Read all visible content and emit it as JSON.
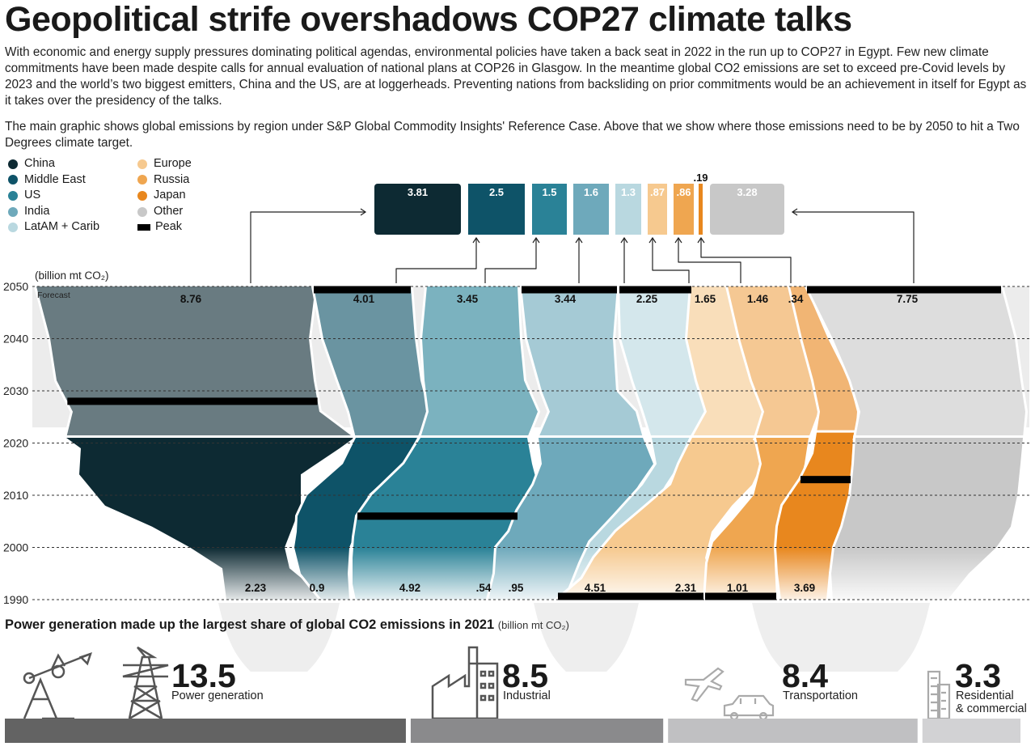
{
  "header": {
    "title": "Geopolitical strife overshadows COP27 climate talks",
    "intro1": "With economic and energy supply pressures dominating political agendas, environmental policies have taken a back seat in 2022 in the run up to COP27 in Egypt. Few new climate commitments have been made despite calls for annual evaluation of national plans at COP26 in Glasgow. In the meantime global CO2 emissions are set to exceed pre-Covid levels by 2023 and the world’s two biggest emitters, China and the US, are at loggerheads. Preventing nations from backsliding on prior commitments would be an achievement in itself for Egypt as it takes over the presidency of the talks.",
    "intro2": "The main graphic shows global emissions by region under S&P Global Commodity Insights' Reference Case. Above that we show where those emissions need to be by 2050 to hit a Two Degrees climate target."
  },
  "legend": {
    "items": [
      {
        "label": "China",
        "color": "#0d2a33"
      },
      {
        "label": "Middle East",
        "color": "#0e5368"
      },
      {
        "label": "US",
        "color": "#2a8297"
      },
      {
        "label": "India",
        "color": "#6ea9bb"
      },
      {
        "label": "LatAM + Carib",
        "color": "#b9d8e0"
      },
      {
        "label": "Europe",
        "color": "#f6c98f"
      },
      {
        "label": "Russia",
        "color": "#efa650"
      },
      {
        "label": "Japan",
        "color": "#e8871e"
      },
      {
        "label": "Other",
        "color": "#c8c8c8"
      }
    ],
    "peak_label": "Peak"
  },
  "chart_data": [
    {
      "type": "area",
      "unit": "(billion mt CO₂)",
      "forecast_label": "Forecast",
      "y_ticks": [
        "2050",
        "2040",
        "2030",
        "2020",
        "2010",
        "2000",
        "1990"
      ],
      "series": [
        {
          "name": "China",
          "value_1990": "2.23",
          "value_2050": "8.76",
          "peak_year": 2028,
          "color": "#0d2a33"
        },
        {
          "name": "Middle East",
          "value_1990": "0.9",
          "value_2050": "4.01",
          "peak_year": 2050,
          "color": "#0e5368"
        },
        {
          "name": "US",
          "value_1990": "4.92",
          "value_2050": "3.45",
          "peak_year": 2006,
          "color": "#2a8297"
        },
        {
          "name": "India",
          "value_1990": ".54",
          "value_2050": "3.44",
          "peak_year": 2050,
          "color": "#6ea9bb"
        },
        {
          "name": "LatAM + Carib",
          "value_1990": ".95",
          "value_2050": "2.25",
          "peak_year": 2050,
          "color": "#b9d8e0"
        },
        {
          "name": "Europe",
          "value_1990": "4.51",
          "value_2050": "1.65",
          "peak_year": 1990,
          "color": "#f6c98f"
        },
        {
          "name": "Russia",
          "value_1990": "2.31",
          "value_2050": "1.46",
          "peak_year": 1990,
          "color": "#efa650"
        },
        {
          "name": "Japan",
          "value_1990": "1.01",
          "value_2050": ".34",
          "peak_year": 2013,
          "color": "#e8871e"
        },
        {
          "name": "Other",
          "value_1990": "3.69",
          "value_2050": "7.75",
          "peak_year": 2050,
          "color": "#c8c8c8"
        }
      ]
    },
    {
      "type": "bar",
      "categories": [
        "China",
        "Middle East",
        "US",
        "India",
        "LatAM + Carib",
        "Europe",
        "Russia",
        "Japan",
        "Other"
      ],
      "values": [
        3.81,
        2.5,
        1.5,
        1.6,
        1.3,
        0.87,
        0.86,
        0.19,
        3.28
      ],
      "labels": [
        "3.81",
        "2.5",
        "1.5",
        "1.6",
        "1.3",
        ".87",
        ".86",
        ".19",
        "3.28"
      ]
    },
    {
      "type": "bar",
      "title": "Power generation made up the largest share of global CO2 emissions in 2021",
      "unit": "(billion mt CO₂)",
      "categories": [
        "Power generation",
        "Industrial",
        "Transportation",
        "Residential & commercial"
      ],
      "values": [
        13.5,
        8.5,
        8.4,
        3.3
      ],
      "colors": [
        "#636363",
        "#8a8a8c",
        "#c0c0c2",
        "#d2d2d4"
      ]
    }
  ],
  "sectors": {
    "title": "Power generation made up the largest share of global CO2 emissions in 2021",
    "unit": "(billion mt CO₂)",
    "items": [
      {
        "value": "13.5",
        "label": "Power generation"
      },
      {
        "value": "8.5",
        "label": "Industrial"
      },
      {
        "value": "8.4",
        "label": "Transportation"
      },
      {
        "value": "3.3",
        "label": "Residential\n& commercial"
      }
    ]
  }
}
